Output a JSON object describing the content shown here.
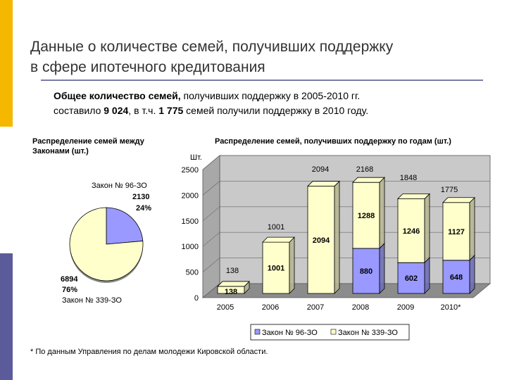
{
  "page": {
    "title_line1": "Данные о количестве семей, получивших поддержку",
    "title_line2": "в сфере ипотечного кредитования",
    "summary": {
      "l1_bold": "Общее количество семей,",
      "l1_rest": " получивших поддержку в 2005-2010 гг.",
      "l2_a": "составило ",
      "l2_total": "9 024",
      "l2_b": ", в т.ч. ",
      "l2_count": "1 775",
      "l2_c": " семей получили поддержку в 2010 году."
    },
    "footnote": "* По данным Управления по делам молодежи Кировской области."
  },
  "chart_data": [
    {
      "type": "pie",
      "title": "Распределение семей между Законами (шт.)",
      "slices": [
        {
          "name": "Закон № 96-ЗО",
          "value": 2130,
          "percent_label": "24%",
          "color": "#9999ff"
        },
        {
          "name": "Закон № 339-ЗО",
          "value": 6894,
          "percent_label": "76%",
          "color": "#ffffcc"
        }
      ]
    },
    {
      "type": "bar",
      "stacked": true,
      "title": "Распределение семей, получивших поддержку по годам (шт.)",
      "ylabel": "Шт.",
      "ylim": [
        0,
        2500
      ],
      "yticks": [
        0,
        500,
        1000,
        1500,
        2000,
        2500
      ],
      "categories": [
        "2005",
        "2006",
        "2007",
        "2008",
        "2009",
        "2010*"
      ],
      "totals": [
        138,
        1001,
        2094,
        2168,
        1848,
        1775
      ],
      "series": [
        {
          "name": "Закон № 96-ЗО",
          "color": "#9999ff",
          "values": [
            0,
            0,
            0,
            880,
            602,
            648
          ]
        },
        {
          "name": "Закон № 339-ЗО",
          "color": "#ffffcc",
          "values": [
            138,
            1001,
            2094,
            1288,
            1246,
            1127
          ]
        }
      ],
      "legend_position": "bottom"
    }
  ]
}
